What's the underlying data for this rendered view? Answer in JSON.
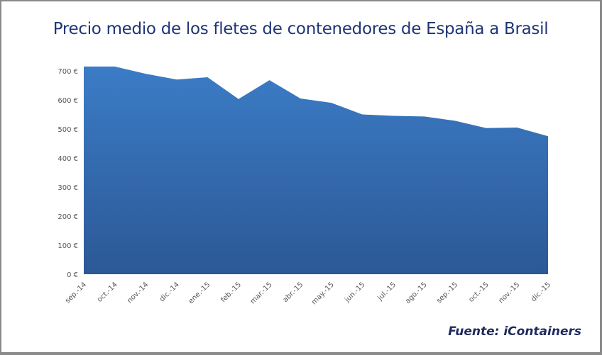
{
  "chart_data": {
    "type": "area",
    "title": "Precio medio de los fletes de contenedores de España a Brasil",
    "source": "Fuente: iContainers",
    "categories": [
      "sep.-14",
      "oct.-14",
      "nov.-14",
      "dic.-14",
      "ene.-15",
      "feb.-15",
      "mar.-15",
      "abr.-15",
      "may.-15",
      "jun.-15",
      "jul.-15",
      "ago.-15",
      "sep.-15",
      "oct.-15",
      "nov.-15",
      "dic.-15"
    ],
    "series": [
      {
        "values": [
          715,
          715,
          690,
          670,
          678,
          603,
          668,
          605,
          590,
          550,
          545,
          543,
          528,
          503,
          505,
          475
        ]
      }
    ],
    "ylim": [
      0,
      700
    ],
    "yticks": [
      0,
      100,
      200,
      300,
      400,
      500,
      600,
      700
    ],
    "ytick_labels": [
      "0 €",
      "100 €",
      "200 €",
      "300 €",
      "400 €",
      "500 €",
      "600 €",
      "700 €"
    ],
    "grid": false,
    "legend": "none",
    "colors": {
      "fill_top": "#3b7cc6",
      "fill_bottom": "#2c5896",
      "title": "#1f3576"
    }
  }
}
